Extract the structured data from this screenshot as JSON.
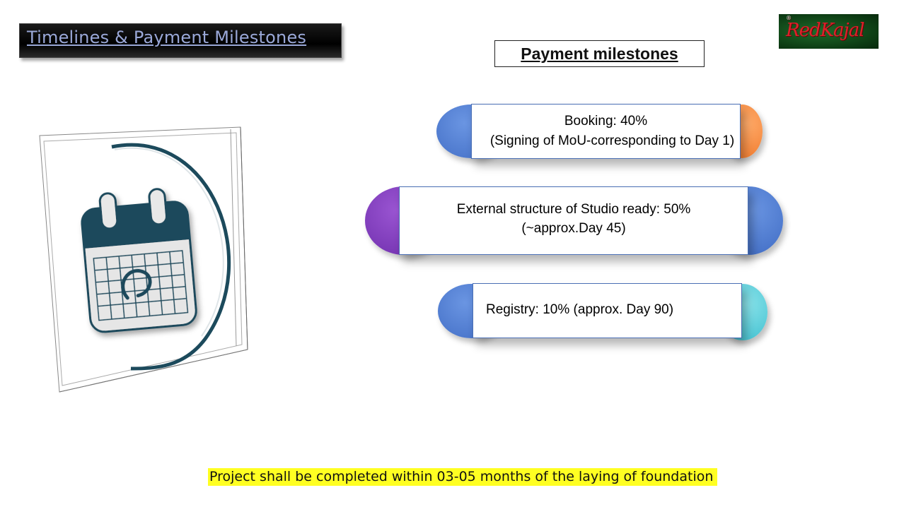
{
  "slide": {
    "title": "Timelines & Payment Milestones",
    "logo_text": "RedKajal",
    "logo_mark": "®",
    "payment_heading": "Payment milestones",
    "milestones": [
      {
        "line1": "Booking: 40%",
        "line2": "(Signing of MoU-corresponding to Day 1)",
        "left_color": "#4a78cf",
        "right_color": "#f58a3a"
      },
      {
        "line1": "External structure of Studio ready: 50%",
        "line2": "(~approx.Day 45)",
        "left_color": "#7a35b5",
        "right_color": "#4a78cf"
      },
      {
        "line1": "Registry: 10% (approx. Day 90)",
        "line2": "",
        "left_color": "#4a78cf",
        "right_color": "#4fc7d6"
      }
    ],
    "footer_note": "Project shall be completed within 03-05 months of the laying of foundation",
    "icons": {
      "illustration": "calendar-icon",
      "accent": "#1c4a5c"
    }
  }
}
